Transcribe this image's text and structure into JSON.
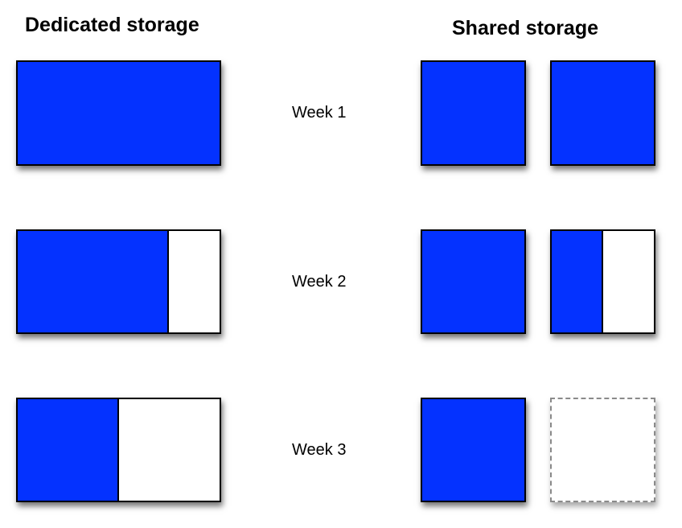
{
  "headings": {
    "dedicated": "Dedicated storage",
    "shared": "Shared storage"
  },
  "weeks": [
    {
      "label": "Week 1",
      "dedicated_fill": 1.0,
      "shared": [
        {
          "fill": 1.0,
          "style": "solid"
        },
        {
          "fill": 1.0,
          "style": "solid"
        }
      ]
    },
    {
      "label": "Week 2",
      "dedicated_fill": 0.75,
      "shared": [
        {
          "fill": 1.0,
          "style": "solid"
        },
        {
          "fill": 0.5,
          "style": "solid"
        }
      ]
    },
    {
      "label": "Week 3",
      "dedicated_fill": 0.5,
      "shared": [
        {
          "fill": 1.0,
          "style": "solid"
        },
        {
          "fill": 0.0,
          "style": "dashed"
        }
      ]
    }
  ],
  "colors": {
    "used": "#0432ff",
    "free": "#ffffff"
  }
}
